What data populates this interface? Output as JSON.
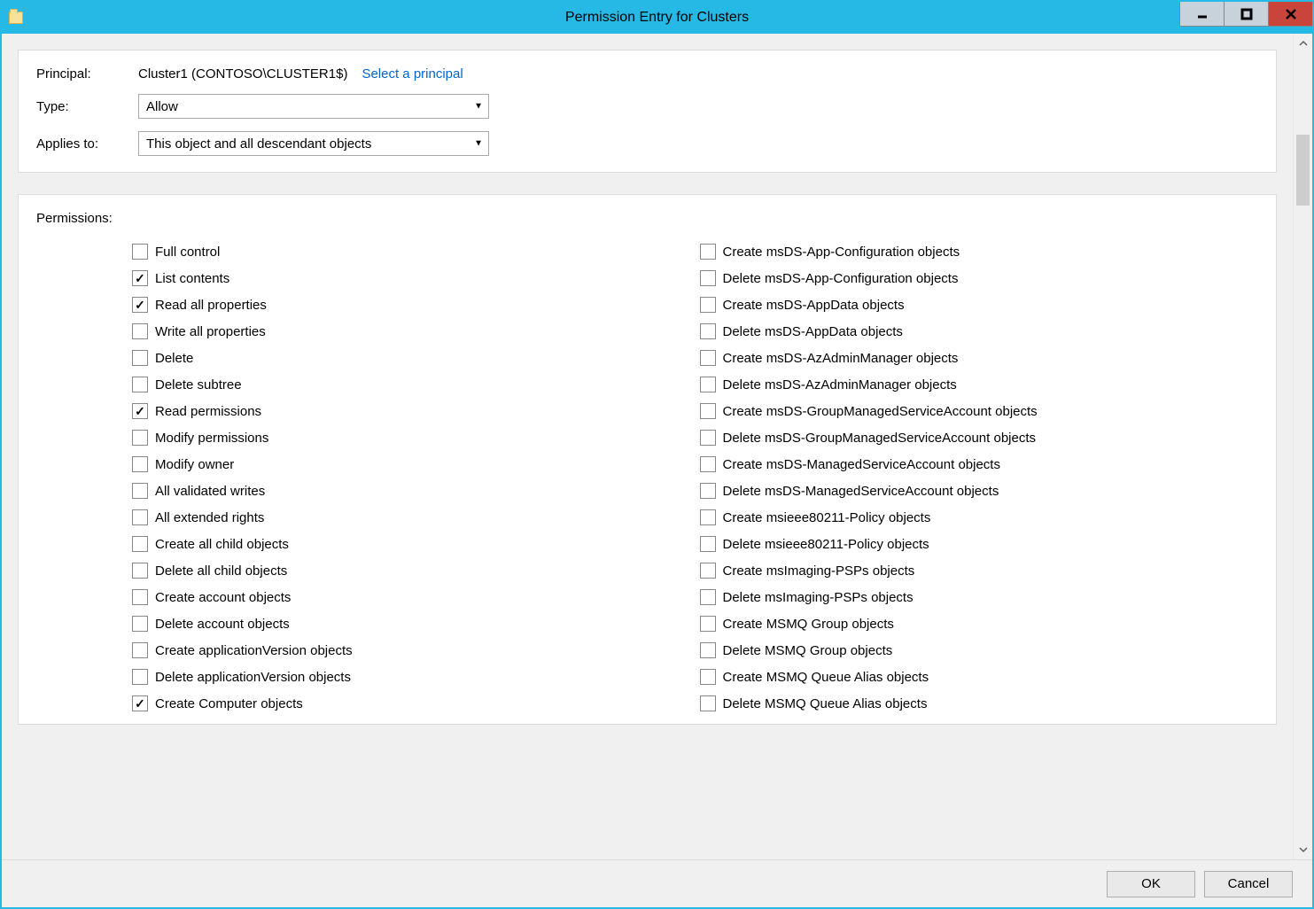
{
  "window": {
    "title": "Permission Entry for Clusters",
    "accent_color": "#27b9e6",
    "close_color": "#c9443b"
  },
  "header": {
    "principal_label": "Principal:",
    "principal_value": "Cluster1 (CONTOSO\\CLUSTER1$)",
    "select_principal_link": "Select a principal",
    "type_label": "Type:",
    "type_value": "Allow",
    "applies_to_label": "Applies to:",
    "applies_to_value": "This object and all descendant objects"
  },
  "permissions": {
    "title": "Permissions:",
    "left": [
      {
        "label": "Full control",
        "checked": false
      },
      {
        "label": "List contents",
        "checked": true
      },
      {
        "label": "Read all properties",
        "checked": true
      },
      {
        "label": "Write all properties",
        "checked": false
      },
      {
        "label": "Delete",
        "checked": false
      },
      {
        "label": "Delete subtree",
        "checked": false
      },
      {
        "label": "Read permissions",
        "checked": true
      },
      {
        "label": "Modify permissions",
        "checked": false
      },
      {
        "label": "Modify owner",
        "checked": false
      },
      {
        "label": "All validated writes",
        "checked": false
      },
      {
        "label": "All extended rights",
        "checked": false
      },
      {
        "label": "Create all child objects",
        "checked": false
      },
      {
        "label": "Delete all child objects",
        "checked": false
      },
      {
        "label": "Create account objects",
        "checked": false
      },
      {
        "label": "Delete account objects",
        "checked": false
      },
      {
        "label": "Create applicationVersion objects",
        "checked": false
      },
      {
        "label": "Delete applicationVersion objects",
        "checked": false
      },
      {
        "label": "Create Computer objects",
        "checked": true
      }
    ],
    "right": [
      {
        "label": "Create msDS-App-Configuration objects",
        "checked": false
      },
      {
        "label": "Delete msDS-App-Configuration objects",
        "checked": false
      },
      {
        "label": "Create msDS-AppData objects",
        "checked": false
      },
      {
        "label": "Delete msDS-AppData objects",
        "checked": false
      },
      {
        "label": "Create msDS-AzAdminManager objects",
        "checked": false
      },
      {
        "label": "Delete msDS-AzAdminManager objects",
        "checked": false
      },
      {
        "label": "Create msDS-GroupManagedServiceAccount objects",
        "checked": false
      },
      {
        "label": "Delete msDS-GroupManagedServiceAccount objects",
        "checked": false
      },
      {
        "label": "Create msDS-ManagedServiceAccount objects",
        "checked": false
      },
      {
        "label": "Delete msDS-ManagedServiceAccount objects",
        "checked": false
      },
      {
        "label": "Create msieee80211-Policy objects",
        "checked": false
      },
      {
        "label": "Delete msieee80211-Policy objects",
        "checked": false
      },
      {
        "label": "Create msImaging-PSPs objects",
        "checked": false
      },
      {
        "label": "Delete msImaging-PSPs objects",
        "checked": false
      },
      {
        "label": "Create MSMQ Group objects",
        "checked": false
      },
      {
        "label": "Delete MSMQ Group objects",
        "checked": false
      },
      {
        "label": "Create MSMQ Queue Alias objects",
        "checked": false
      },
      {
        "label": "Delete MSMQ Queue Alias objects",
        "checked": false
      }
    ]
  },
  "buttons": {
    "ok": "OK",
    "cancel": "Cancel"
  }
}
